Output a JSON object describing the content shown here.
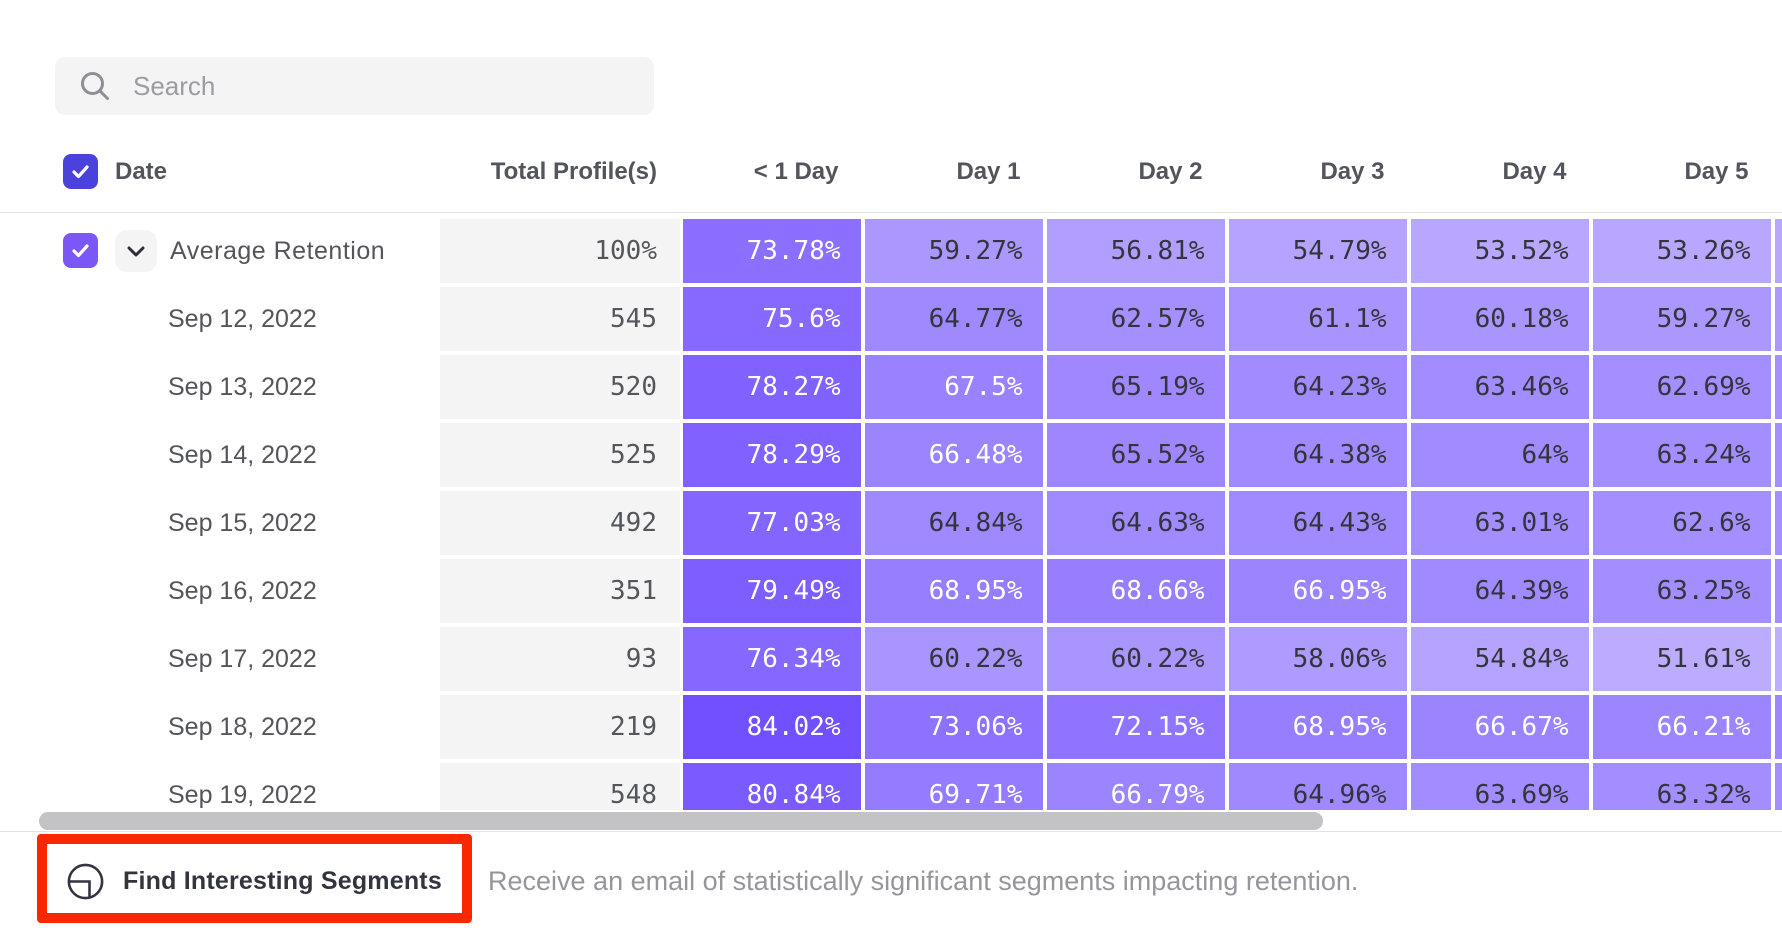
{
  "search": {
    "placeholder": "Search"
  },
  "table": {
    "columns": {
      "date": "Date",
      "total": "Total Profile(s)",
      "days": [
        "< 1 Day",
        "Day 1",
        "Day 2",
        "Day 3",
        "Day 4",
        "Day 5"
      ]
    },
    "header_checkbox_checked": true,
    "rows": [
      {
        "label": "Average Retention",
        "is_average": true,
        "checkbox_checked": true,
        "total": "100%",
        "values": [
          73.78,
          59.27,
          56.81,
          54.79,
          53.52,
          53.26
        ],
        "day6_shade": 53.1
      },
      {
        "label": "Sep 12, 2022",
        "total": "545",
        "values": [
          75.6,
          64.77,
          62.57,
          61.1,
          60.18,
          59.27
        ],
        "day6_shade": 58.9
      },
      {
        "label": "Sep 13, 2022",
        "total": "520",
        "values": [
          78.27,
          67.5,
          65.19,
          64.23,
          63.46,
          62.69
        ],
        "day6_shade": 62.2
      },
      {
        "label": "Sep 14, 2022",
        "total": "525",
        "values": [
          78.29,
          66.48,
          65.52,
          64.38,
          64,
          63.24
        ],
        "day6_shade": 62.8
      },
      {
        "label": "Sep 15, 2022",
        "total": "492",
        "values": [
          77.03,
          64.84,
          64.63,
          64.43,
          63.01,
          62.6
        ],
        "day6_shade": 62.1
      },
      {
        "label": "Sep 16, 2022",
        "total": "351",
        "values": [
          79.49,
          68.95,
          68.66,
          66.95,
          64.39,
          63.25
        ],
        "day6_shade": 62.7
      },
      {
        "label": "Sep 17, 2022",
        "total": "93",
        "values": [
          76.34,
          60.22,
          60.22,
          58.06,
          54.84,
          51.61
        ],
        "day6_shade": 50.5
      },
      {
        "label": "Sep 18, 2022",
        "total": "219",
        "values": [
          84.02,
          73.06,
          72.15,
          68.95,
          66.67,
          66.21
        ],
        "day6_shade": 65.8
      },
      {
        "label": "Sep 19, 2022",
        "total": "548",
        "values": [
          80.84,
          69.71,
          66.79,
          64.96,
          63.69,
          63.32
        ],
        "day6_shade": 62.9
      }
    ]
  },
  "footer": {
    "button_label": "Find Interesting Segments",
    "description": "Receive an email of statistically significant segments impacting retention."
  },
  "colors": {
    "heat_base": [
      73,
      27,
      255
    ],
    "heat_gamma": 1.508,
    "white_text_min": 66,
    "header_checkbox": "#4b42de",
    "row_checkbox": "#7b57f8",
    "annotation_red": "#fa2800"
  }
}
